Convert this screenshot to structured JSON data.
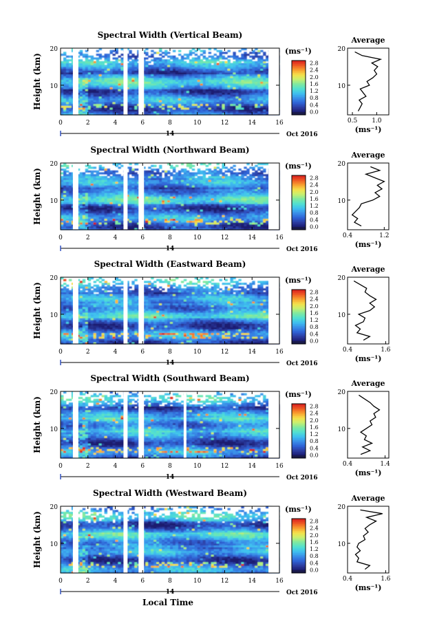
{
  "x_axis_title": "Local Time",
  "date_label": "Oct 2016",
  "day_label": "14",
  "y_axis_title": "Height (km)",
  "colorbar_unit": "(ms⁻¹)",
  "colorbar_ticks": [
    "0.0",
    "0.4",
    "0.8",
    "1.2",
    "1.6",
    "2.0",
    "2.4",
    "2.8"
  ],
  "average_title": "Average",
  "average_unit": "(ms⁻¹)",
  "colorscale": [
    "#1a1a6e",
    "#2c3ca0",
    "#2f63d6",
    "#3a8fe8",
    "#3fc0f0",
    "#52e0d0",
    "#7fe9a0",
    "#c8f070",
    "#f5e04a",
    "#f8a030",
    "#ef5a24",
    "#d81f1f"
  ],
  "chart_data": [
    {
      "type": "heatmap",
      "title": "Spectral Width (Vertical Beam)",
      "x_ticks": [
        "0",
        "2",
        "4",
        "6",
        "8",
        "10",
        "12",
        "14",
        "16"
      ],
      "y_ticks": [
        "20",
        "10"
      ],
      "xlim": [
        0,
        16
      ],
      "ylim": [
        2,
        20
      ],
      "clim": [
        0.0,
        2.8
      ],
      "data_gaps_hours": [
        [
          0.9,
          1.3
        ],
        [
          4.6,
          4.9
        ],
        [
          5.7,
          6.1
        ]
      ],
      "avg_profile": {
        "x_ticks": [
          "0.5",
          "1.0"
        ],
        "xlim": [
          0.4,
          1.25
        ],
        "height_km": [
          3,
          4,
          5,
          6,
          7,
          8,
          9,
          10,
          11,
          12,
          13,
          14,
          15,
          16,
          17,
          18,
          19
        ],
        "value": [
          0.62,
          0.66,
          0.7,
          0.64,
          0.78,
          0.72,
          0.66,
          0.85,
          0.8,
          0.92,
          1.0,
          0.95,
          1.02,
          0.9,
          1.08,
          0.7,
          0.55
        ]
      }
    },
    {
      "type": "heatmap",
      "title": "Spectral Width (Northward Beam)",
      "x_ticks": [
        "0",
        "2",
        "4",
        "6",
        "8",
        "10",
        "12",
        "14",
        "16"
      ],
      "y_ticks": [
        "20",
        "10"
      ],
      "xlim": [
        0,
        16
      ],
      "ylim": [
        2,
        20
      ],
      "clim": [
        0.0,
        2.8
      ],
      "data_gaps_hours": [
        [
          0.9,
          1.3
        ],
        [
          4.6,
          4.9
        ],
        [
          5.7,
          6.1
        ]
      ],
      "avg_profile": {
        "x_ticks": [
          "0.4",
          "1.2"
        ],
        "xlim": [
          0.4,
          1.3
        ],
        "height_km": [
          3,
          4,
          5,
          6,
          7,
          8,
          9,
          10,
          11,
          12,
          13,
          14,
          15,
          16,
          17,
          18,
          19
        ],
        "value": [
          0.7,
          0.55,
          0.62,
          0.5,
          0.58,
          0.66,
          0.7,
          0.95,
          1.1,
          1.0,
          1.15,
          1.05,
          1.2,
          1.0,
          0.8,
          1.1,
          0.9
        ]
      }
    },
    {
      "type": "heatmap",
      "title": "Spectral Width (Eastward Beam)",
      "x_ticks": [
        "0",
        "2",
        "4",
        "6",
        "8",
        "10",
        "12",
        "14",
        "16"
      ],
      "y_ticks": [
        "20",
        "10"
      ],
      "xlim": [
        0,
        16
      ],
      "ylim": [
        2,
        20
      ],
      "clim": [
        0.0,
        2.8
      ],
      "data_gaps_hours": [
        [
          0.9,
          1.3
        ],
        [
          4.6,
          4.9
        ],
        [
          5.7,
          6.1
        ]
      ],
      "avg_profile": {
        "x_ticks": [
          "0.4",
          "1.6"
        ],
        "xlim": [
          0.4,
          1.7
        ],
        "height_km": [
          3,
          4,
          5,
          6,
          7,
          8,
          9,
          10,
          11,
          12,
          13,
          14,
          15,
          16,
          17,
          18,
          19
        ],
        "value": [
          0.9,
          1.1,
          0.7,
          0.8,
          0.65,
          0.9,
          0.95,
          0.75,
          1.1,
          1.25,
          1.1,
          1.3,
          1.1,
          0.95,
          1.0,
          0.8,
          0.6
        ]
      }
    },
    {
      "type": "heatmap",
      "title": "Spectral Width (Southward Beam)",
      "x_ticks": [
        "0",
        "2",
        "4",
        "6",
        "8",
        "10",
        "12",
        "14",
        "16"
      ],
      "y_ticks": [
        "20",
        "10"
      ],
      "xlim": [
        0,
        16
      ],
      "ylim": [
        2,
        20
      ],
      "clim": [
        0.0,
        2.8
      ],
      "data_gaps_hours": [
        [
          0.9,
          1.3
        ],
        [
          4.6,
          4.9
        ],
        [
          5.7,
          6.1
        ],
        [
          9.0,
          9.2
        ]
      ],
      "avg_profile": {
        "x_ticks": [
          "0.4",
          "1.4"
        ],
        "xlim": [
          0.4,
          1.5
        ],
        "height_km": [
          3,
          4,
          5,
          6,
          7,
          8,
          9,
          10,
          11,
          12,
          13,
          14,
          15,
          16,
          17,
          18,
          19
        ],
        "value": [
          0.75,
          1.0,
          0.8,
          1.05,
          0.85,
          0.9,
          0.75,
          0.9,
          1.05,
          1.0,
          1.15,
          1.1,
          1.25,
          1.1,
          1.0,
          0.85,
          0.7
        ]
      }
    },
    {
      "type": "heatmap",
      "title": "Spectral Width (Westward Beam)",
      "x_ticks": [
        "0",
        "2",
        "4",
        "6",
        "8",
        "10",
        "12",
        "14",
        "16"
      ],
      "y_ticks": [
        "20",
        "10"
      ],
      "xlim": [
        0,
        16
      ],
      "ylim": [
        2,
        20
      ],
      "clim": [
        0.0,
        2.8
      ],
      "data_gaps_hours": [
        [
          0.9,
          1.3
        ],
        [
          4.6,
          4.9
        ],
        [
          5.7,
          6.1
        ]
      ],
      "avg_profile": {
        "x_ticks": [
          "0.4",
          "1.6"
        ],
        "xlim": [
          0.4,
          1.7
        ],
        "height_km": [
          3,
          4,
          5,
          6,
          7,
          8,
          9,
          10,
          11,
          12,
          13,
          14,
          15,
          16,
          17,
          18,
          19
        ],
        "value": [
          0.95,
          1.1,
          0.7,
          0.75,
          0.65,
          0.8,
          0.7,
          0.75,
          0.95,
          0.9,
          1.05,
          0.95,
          1.1,
          1.3,
          1.0,
          1.5,
          0.8
        ]
      }
    }
  ]
}
